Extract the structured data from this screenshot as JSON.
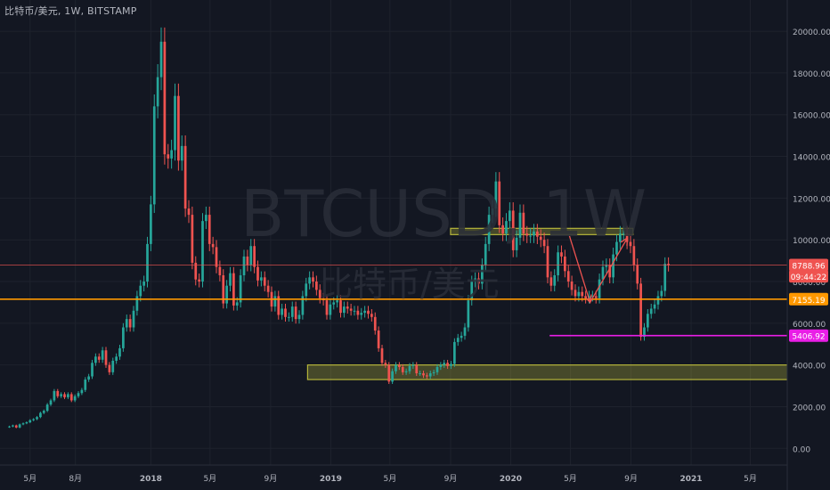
{
  "header": {
    "symbol_line": "比特币/美元, 1W, BITSTAMP"
  },
  "watermark": {
    "ticker": "BTCUSD, 1W",
    "name": "比特币/美元"
  },
  "colors": {
    "up": "#26a69a",
    "down": "#ef5350",
    "background": "#131722",
    "axis_text": "#b2b5be",
    "grid": "#1e222d",
    "support": "#ff9800",
    "low_line": "#e91ee6",
    "zone": "#b5b53a",
    "projection": "#ef5350"
  },
  "chart_data": {
    "type": "candlestick",
    "title": "比特币/美元, 1W, BITSTAMP",
    "ylim": [
      -800,
      21500
    ],
    "y_ticks": [
      0,
      2000,
      4000,
      6000,
      8000,
      10000,
      12000,
      14000,
      16000,
      18000,
      20000
    ],
    "y_tick_labels": [
      "0.00",
      "2000.00",
      "4000.00",
      "6000.00",
      "8000.00",
      "10000.00",
      "12000.00",
      "14000.00",
      "16000.00",
      "18000.00",
      "20000.00"
    ],
    "x_tick_labels": [
      "5月",
      "8月",
      "2018",
      "5月",
      "9月",
      "2019",
      "5月",
      "9月",
      "2020",
      "5月",
      "9月",
      "2021",
      "5月"
    ],
    "x_tick_dates": [
      "2017-05",
      "2017-08",
      "2018-01",
      "2018-05",
      "2018-09",
      "2019-01",
      "2019-05",
      "2019-09",
      "2020-01",
      "2020-05",
      "2020-09",
      "2021-01",
      "2021-05"
    ],
    "price_labels": [
      {
        "label": "8788.96",
        "value": 8788.96,
        "color": "#ef5350"
      },
      {
        "label": "09:44:22",
        "value": 8250,
        "color": "#ef5350"
      },
      {
        "label": "7155.19",
        "value": 7155.19,
        "color": "#ff9800"
      },
      {
        "label": "5406.92",
        "value": 5406.92,
        "color": "#e91ee6"
      }
    ],
    "horizontal_lines": [
      {
        "name": "current-price",
        "value": 8788.96
      },
      {
        "name": "support",
        "value": 7155.19
      },
      {
        "name": "low",
        "value": 5406.92,
        "from": "2020-03-20"
      }
    ],
    "zones": [
      {
        "name": "resistance-zone",
        "low": 10250,
        "high": 10550,
        "from": "2019-09-01",
        "to": "2020-09-05"
      },
      {
        "name": "support-zone",
        "low": 3300,
        "high": 4000,
        "from": "2018-11-15",
        "to": "2021-09-15"
      }
    ],
    "projection": [
      [
        "2020-04-29",
        10200
      ],
      [
        "2020-06-10",
        7000
      ],
      [
        "2020-08-25",
        10100
      ]
    ],
    "candles_weekly": {
      "start": "2017-03-20",
      "close": [
        1050,
        1100,
        1000,
        1150,
        1200,
        1250,
        1350,
        1400,
        1500,
        1700,
        1800,
        2100,
        2300,
        2750,
        2500,
        2600,
        2450,
        2600,
        2300,
        2500,
        2650,
        2800,
        3300,
        3450,
        4100,
        4400,
        4250,
        4700,
        4000,
        3650,
        4200,
        4400,
        4800,
        5800,
        6200,
        5800,
        6600,
        7300,
        7800,
        8000,
        9800,
        11700,
        16400,
        17800,
        19500,
        14100,
        13900,
        14300,
        16900,
        13800,
        14500,
        11500,
        11200,
        8900,
        8100,
        8000,
        10900,
        11200,
        9800,
        9650,
        8700,
        8300,
        6950,
        7800,
        8400,
        6850,
        7000,
        8300,
        9200,
        8800,
        9700,
        8700,
        8050,
        8200,
        7800,
        7500,
        6800,
        7300,
        6400,
        6700,
        6300,
        6300,
        6800,
        6200,
        6400,
        7300,
        7900,
        8200,
        8000,
        7600,
        7200,
        7100,
        6400,
        6900,
        7000,
        7100,
        6500,
        6800,
        6700,
        6600,
        6600,
        6400,
        6500,
        6600,
        6450,
        6300,
        5650,
        4800,
        4100,
        4000,
        3200,
        3700,
        4000,
        3900,
        3650,
        3700,
        3950,
        4000,
        3600,
        3600,
        3500,
        3450,
        3600,
        3650,
        3900,
        4000,
        4100,
        3950,
        4050,
        5100,
        5300,
        5400,
        5800,
        7100,
        8000,
        8150,
        7900,
        8800,
        9800,
        11200,
        11500,
        12800,
        10700,
        10300,
        10900,
        11400,
        9500,
        10100,
        11300,
        10300,
        10200,
        10200,
        10400,
        10150,
        10000,
        9700,
        8200,
        7800,
        8300,
        9400,
        9200,
        8500,
        8000,
        7600,
        7300,
        7500,
        7300,
        7200,
        7300,
        7300,
        7200,
        8100,
        8700,
        8800,
        8200,
        9300,
        9900,
        10300,
        10300,
        9900,
        9700,
        8800,
        7900,
        5350,
        5800,
        6450,
        6700,
        6900,
        7300,
        7550,
        8850,
        8789
      ]
    }
  }
}
